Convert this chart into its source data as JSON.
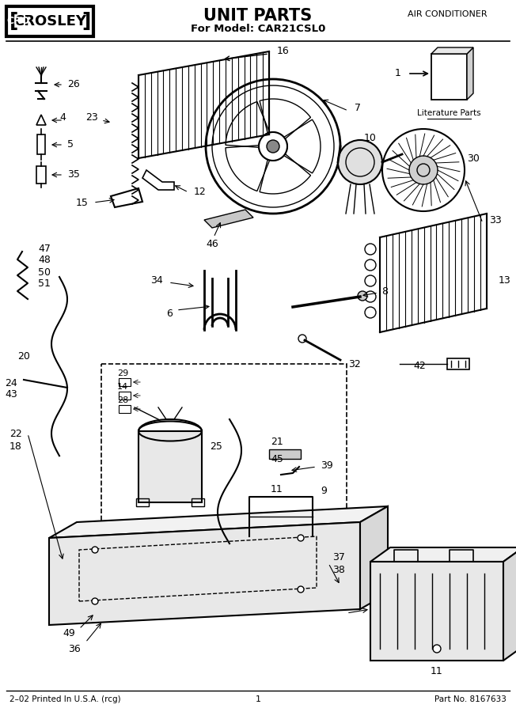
{
  "title": "UNIT PARTS",
  "subtitle": "For Model: CAR21CSL0",
  "brand": "CROSLEY",
  "top_right": "AIR CONDITIONER",
  "bottom_left": "2–02 Printed In U.S.A. (rcg)",
  "bottom_center": "1",
  "bottom_right": "Part No. 8167633",
  "literature_label": "Literature Parts",
  "bg_color": "#ffffff",
  "fig_width": 6.52,
  "fig_height": 9.0,
  "dpi": 100
}
